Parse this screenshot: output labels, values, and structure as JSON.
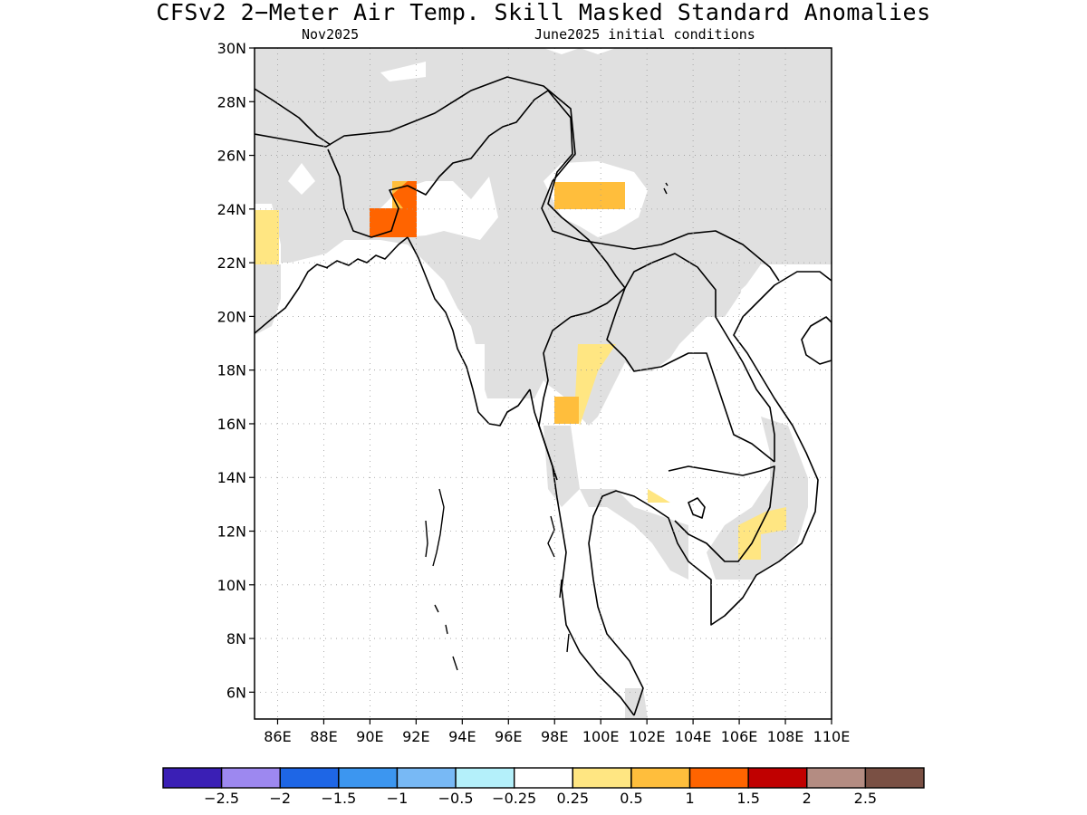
{
  "header": {
    "title": "CFSv2 2−Meter Air Temp. Skill Masked Standard Anomalies",
    "target_month": "Nov2025",
    "init_conditions": "June2025 initial conditions"
  },
  "map": {
    "region": "Mainland Southeast Asia / Bay of Bengal",
    "lon_range": [
      85,
      110
    ],
    "lat_range": [
      5,
      30
    ],
    "lat_ticks": [
      "30N",
      "28N",
      "26N",
      "24N",
      "22N",
      "20N",
      "18N",
      "16N",
      "14N",
      "12N",
      "10N",
      "8N",
      "6N"
    ],
    "lon_ticks": [
      "86E",
      "88E",
      "90E",
      "92E",
      "94E",
      "96E",
      "98E",
      "100E",
      "102E",
      "104E",
      "106E",
      "108E",
      "110E"
    ],
    "masked_color": "#e0e0e0",
    "grid": "dotted"
  },
  "legend": {
    "colors": [
      "#3a1fb5",
      "#9d88f0",
      "#1e66e6",
      "#3c96f0",
      "#78b9f5",
      "#b4f0fa",
      "#ffffff",
      "#ffe682",
      "#ffbe3c",
      "#ff6400",
      "#c00000",
      "#b48c82",
      "#7a5044"
    ],
    "labels": [
      "−2.5",
      "−2",
      "−1.5",
      "−1",
      "−0.5",
      "−0.25",
      "0.25",
      "0.5",
      "1",
      "1.5",
      "2",
      "2.5"
    ]
  }
}
